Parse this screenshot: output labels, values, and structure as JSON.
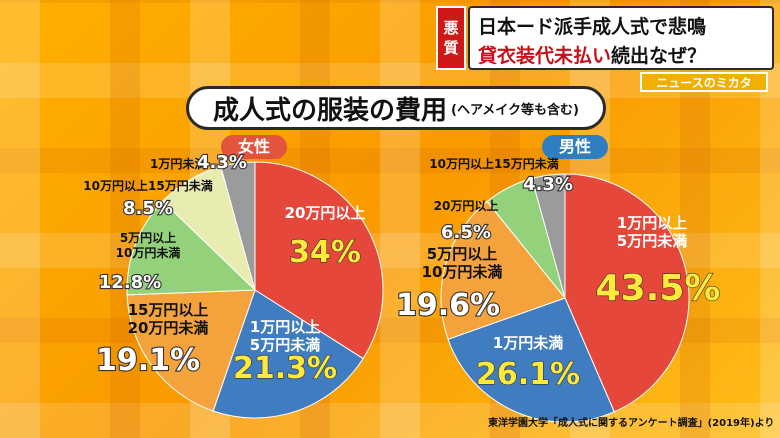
{
  "headline": {
    "tag_l1": "悪",
    "tag_l2": "質",
    "line1": "日本ード派手成人式で悲鳴",
    "line2_red": "貸衣装代未払い",
    "line2_black": "続出なぜ？"
  },
  "brand": "ニュースのミカタ",
  "title": {
    "main": "成人式の服装の費用",
    "sub": "(ヘアメイク等も含む)"
  },
  "source": "東洋学園大学「成人式に関するアンケート調査」(2019年)より",
  "colors": {
    "red": "#e5473a",
    "blue": "#3f7dc0",
    "orange": "#f4a23c",
    "green": "#93d17a",
    "cream": "#e8ecb0",
    "gray": "#9b9b9b",
    "female": "#e2553c",
    "male": "#2f7ec2"
  },
  "chart_data": [
    {
      "type": "pie",
      "title": "女性",
      "slices": [
        {
          "label": "20万円以上",
          "value": 34.0,
          "display": "34%",
          "color": "red"
        },
        {
          "label": "1万円以上\n5万円未満",
          "value": 21.3,
          "display": "21.3%",
          "color": "blue"
        },
        {
          "label": "15万円以上\n20万円未満",
          "value": 19.1,
          "display": "19.1%",
          "color": "orange"
        },
        {
          "label": "5万円以上\n10万円未満",
          "value": 12.8,
          "display": "12.8%",
          "color": "green"
        },
        {
          "label": "10万円以上15万円未満",
          "value": 8.5,
          "display": "8.5%",
          "color": "cream"
        },
        {
          "label": "1万円未満",
          "value": 4.3,
          "display": "4.3%",
          "color": "gray"
        }
      ]
    },
    {
      "type": "pie",
      "title": "男性",
      "slices": [
        {
          "label": "1万円以上\n5万円未満",
          "value": 43.5,
          "display": "43.5%",
          "color": "red"
        },
        {
          "label": "1万円未満",
          "value": 26.1,
          "display": "26.1%",
          "color": "blue"
        },
        {
          "label": "5万円以上\n10万円未満",
          "value": 19.6,
          "display": "19.6%",
          "color": "orange"
        },
        {
          "label": "20万円以上",
          "value": 6.5,
          "display": "6.5%",
          "color": "green"
        },
        {
          "label": "10万円以上15万円未満",
          "value": 4.3,
          "display": "4.3%",
          "color": "gray"
        }
      ]
    }
  ]
}
